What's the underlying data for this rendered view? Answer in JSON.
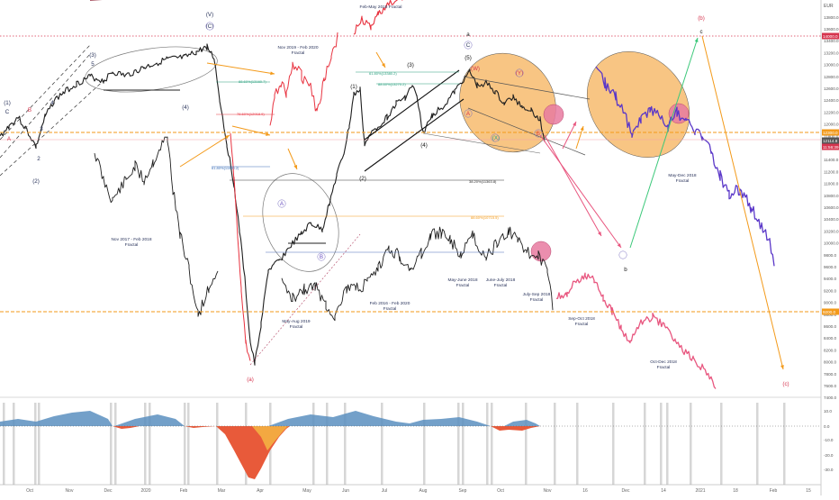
{
  "chart_data": {
    "type": "line",
    "price_axis": {
      "currency": "EUR",
      "ticks": [
        "13800.0",
        "13600.0",
        "13400.0",
        "13200.0",
        "13000.0",
        "12800.0",
        "12600.0",
        "12400.0",
        "12200.0",
        "12000.0",
        "11800.0",
        "11600.0",
        "11400.0",
        "11200.0",
        "11000.0",
        "10800.0",
        "10600.0",
        "10400.0",
        "10200.0",
        "10000.0",
        "9800.0",
        "9600.0",
        "9400.0",
        "9200.0",
        "9000.0",
        "8800.0",
        "8600.0",
        "8400.0",
        "8200.0",
        "8000.0",
        "7800.0",
        "7600.0",
        "7400.0"
      ],
      "highlight_labels": [
        "14000.0",
        "12300.0",
        "12114.8",
        "11:56:39",
        "9200.0"
      ]
    },
    "time_axis": [
      "Oct",
      "Nov",
      "Dec",
      "2020",
      "Feb",
      "Mar",
      "Apr",
      "May",
      "Jun",
      "Jul",
      "Aug",
      "Sep",
      "Oct",
      "Nov",
      "16",
      "Dec",
      "14",
      "2021",
      "18",
      "Feb",
      "15",
      "Mar",
      "15"
    ],
    "oscillator_axis": [
      "10.0",
      "0.0",
      "-10.0",
      "-20.0",
      "-30.0"
    ],
    "fractal_labels": [
      "Feb-May 2018 Fractal",
      "Nov 2019 - Feb 2020 Fractal",
      "Nov 2017 - Feb 2018 Fractal",
      "May-Aug 2019 Fractal",
      "Feb 2016 - Feb 2020 Fractal",
      "May-June 2018 Fractal",
      "June-July 2018 Fractal",
      "July-Sep 2018 Fractal",
      "Sep-Oct 2018 Fractal",
      "Oct-Dec 2018 Fractal",
      "May-Dec 2018 Fractal"
    ],
    "fib_labels": [
      "88.60%(13160.7)",
      "78.60%(12918.9)",
      "61.80%(11590.2)",
      "38.20%(11363.8)",
      "88.60%(10715.5)",
      "61.80%(13380.2)",
      "88.60%(13270.2)"
    ],
    "wave_labels": [
      "(V)",
      "(C)",
      "(1)",
      "C",
      "B",
      "A",
      "(2)",
      "(3)",
      "5",
      "4",
      "3",
      "2",
      "(4)",
      "(1)",
      "(2)",
      "(3)",
      "(4)",
      "(5)",
      "a",
      "C",
      "(W)",
      "(X)",
      "(Y)",
      "A",
      "B",
      "(b)",
      "c",
      "(a)",
      "b",
      "(c)",
      "A",
      "B"
    ]
  }
}
